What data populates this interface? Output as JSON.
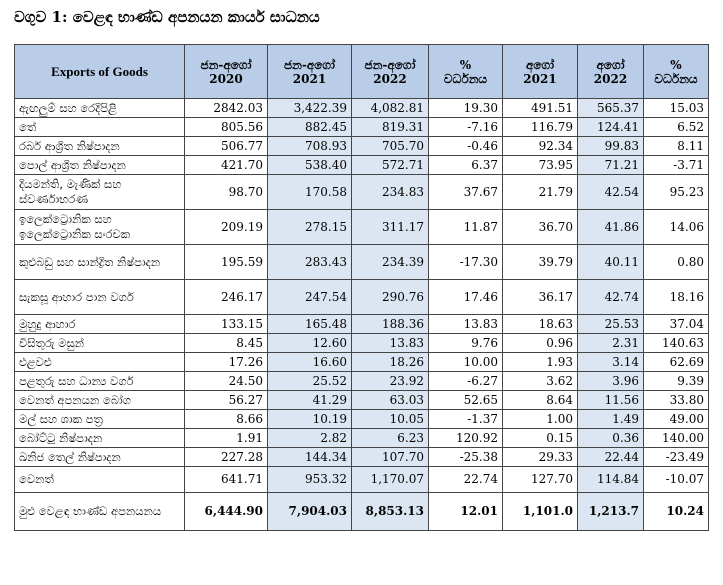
{
  "caption": "වගුව 1: වෙළඳ භාණ්ඩ අපනයන කාර්ය සාධනය",
  "headers": [
    {
      "l1": "Exports of Goods",
      "l2": ""
    },
    {
      "l1": "ජන-අගෝ",
      "l2": "2020"
    },
    {
      "l1": "ජන-අගෝ",
      "l2": "2021"
    },
    {
      "l1": "ජන-අගෝ",
      "l2": "2022"
    },
    {
      "l1": "%",
      "l2": "වර්ධනය"
    },
    {
      "l1": "අගෝ",
      "l2": "2021"
    },
    {
      "l1": "අගෝ",
      "l2": "2022"
    },
    {
      "l1": "%",
      "l2": "වර්ධනය"
    }
  ],
  "rows": [
    {
      "label": "ඇඟලුම් සහ රෙදිපිළි",
      "v": [
        "2842.03",
        "3,422.39",
        "4,082.81",
        "19.30",
        "491.51",
        "565.37",
        "15.03"
      ]
    },
    {
      "label": "තේ",
      "v": [
        "805.56",
        "882.45",
        "819.31",
        "-7.16",
        "116.79",
        "124.41",
        "6.52"
      ]
    },
    {
      "label": "රබර් ආශ්‍රිත නිෂ්පාදන",
      "v": [
        "506.77",
        "708.93",
        "705.70",
        "-0.46",
        "92.34",
        "99.83",
        "8.11"
      ]
    },
    {
      "label": "පොල් ආශ්‍රිත නිෂ්පාදන",
      "v": [
        "421.70",
        "538.40",
        "572.71",
        "6.37",
        "73.95",
        "71.21",
        "-3.71"
      ]
    },
    {
      "label": "දියමන්ති, මැණික් සහ ස්වර්ණාභරණ",
      "v": [
        "98.70",
        "170.58",
        "234.83",
        "37.67",
        "21.79",
        "42.54",
        "95.23"
      ]
    },
    {
      "label": "ඉලෙක්ට්‍රොනික සහ ඉලෙක්ට්‍රොනික සංරචක",
      "v": [
        "209.19",
        "278.15",
        "311.17",
        "11.87",
        "36.70",
        "41.86",
        "14.06"
      ]
    },
    {
      "label": "කුළුබඩු සහ සාන්ද්‍රිත නිෂ්පාදන",
      "v": [
        "195.59",
        "283.43",
        "234.39",
        "-17.30",
        "39.79",
        "40.11",
        "0.80"
      ]
    },
    {
      "label": "සැකසූ ආහාර පාන වර්ග",
      "v": [
        "246.17",
        "247.54",
        "290.76",
        "17.46",
        "36.17",
        "42.74",
        "18.16"
      ]
    },
    {
      "label": "මුහුදු ආහාර",
      "v": [
        "133.15",
        "165.48",
        "188.36",
        "13.83",
        "18.63",
        "25.53",
        "37.04"
      ]
    },
    {
      "label": "විසිතුරු මසුන්",
      "v": [
        "8.45",
        "12.60",
        "13.83",
        "9.76",
        "0.96",
        "2.31",
        "140.63"
      ]
    },
    {
      "label": "එළවළු",
      "v": [
        "17.26",
        "16.60",
        "18.26",
        "10.00",
        "1.93",
        "3.14",
        "62.69"
      ]
    },
    {
      "label": "පළතුරු සහ ධාන්‍ය වර්ග",
      "v": [
        "24.50",
        "25.52",
        "23.92",
        "-6.27",
        "3.62",
        "3.96",
        "9.39"
      ]
    },
    {
      "label": "වෙනත් අපනයන බෝග",
      "v": [
        "56.27",
        "41.29",
        "63.03",
        "52.65",
        "8.64",
        "11.56",
        "33.80"
      ]
    },
    {
      "label": "මල් සහ ශාක පත්‍ර",
      "v": [
        "8.66",
        "10.19",
        "10.05",
        "-1.37",
        "1.00",
        "1.49",
        "49.00"
      ]
    },
    {
      "label": "බෝට්ටු නිෂ්පාදන",
      "v": [
        "1.91",
        "2.82",
        "6.23",
        "120.92",
        "0.15",
        "0.36",
        "140.00"
      ]
    },
    {
      "label": "ඛනිජ තෙල් නිෂ්පාදන",
      "v": [
        "227.28",
        "144.34",
        "107.70",
        "-25.38",
        "29.33",
        "22.44",
        "-23.49"
      ]
    },
    {
      "label": "වෙනත්",
      "v": [
        "641.71",
        "953.32",
        "1,170.07",
        "22.74",
        "127.70",
        "114.84",
        "-10.07"
      ]
    }
  ],
  "total": {
    "label": "මුළු වෙළඳ භාණ්ඩ අපනයනය",
    "v": [
      "6,444.90",
      "7,904.03",
      "8,853.13",
      "12.01",
      "1,101.0",
      "1,213.7",
      "10.24"
    ]
  }
}
